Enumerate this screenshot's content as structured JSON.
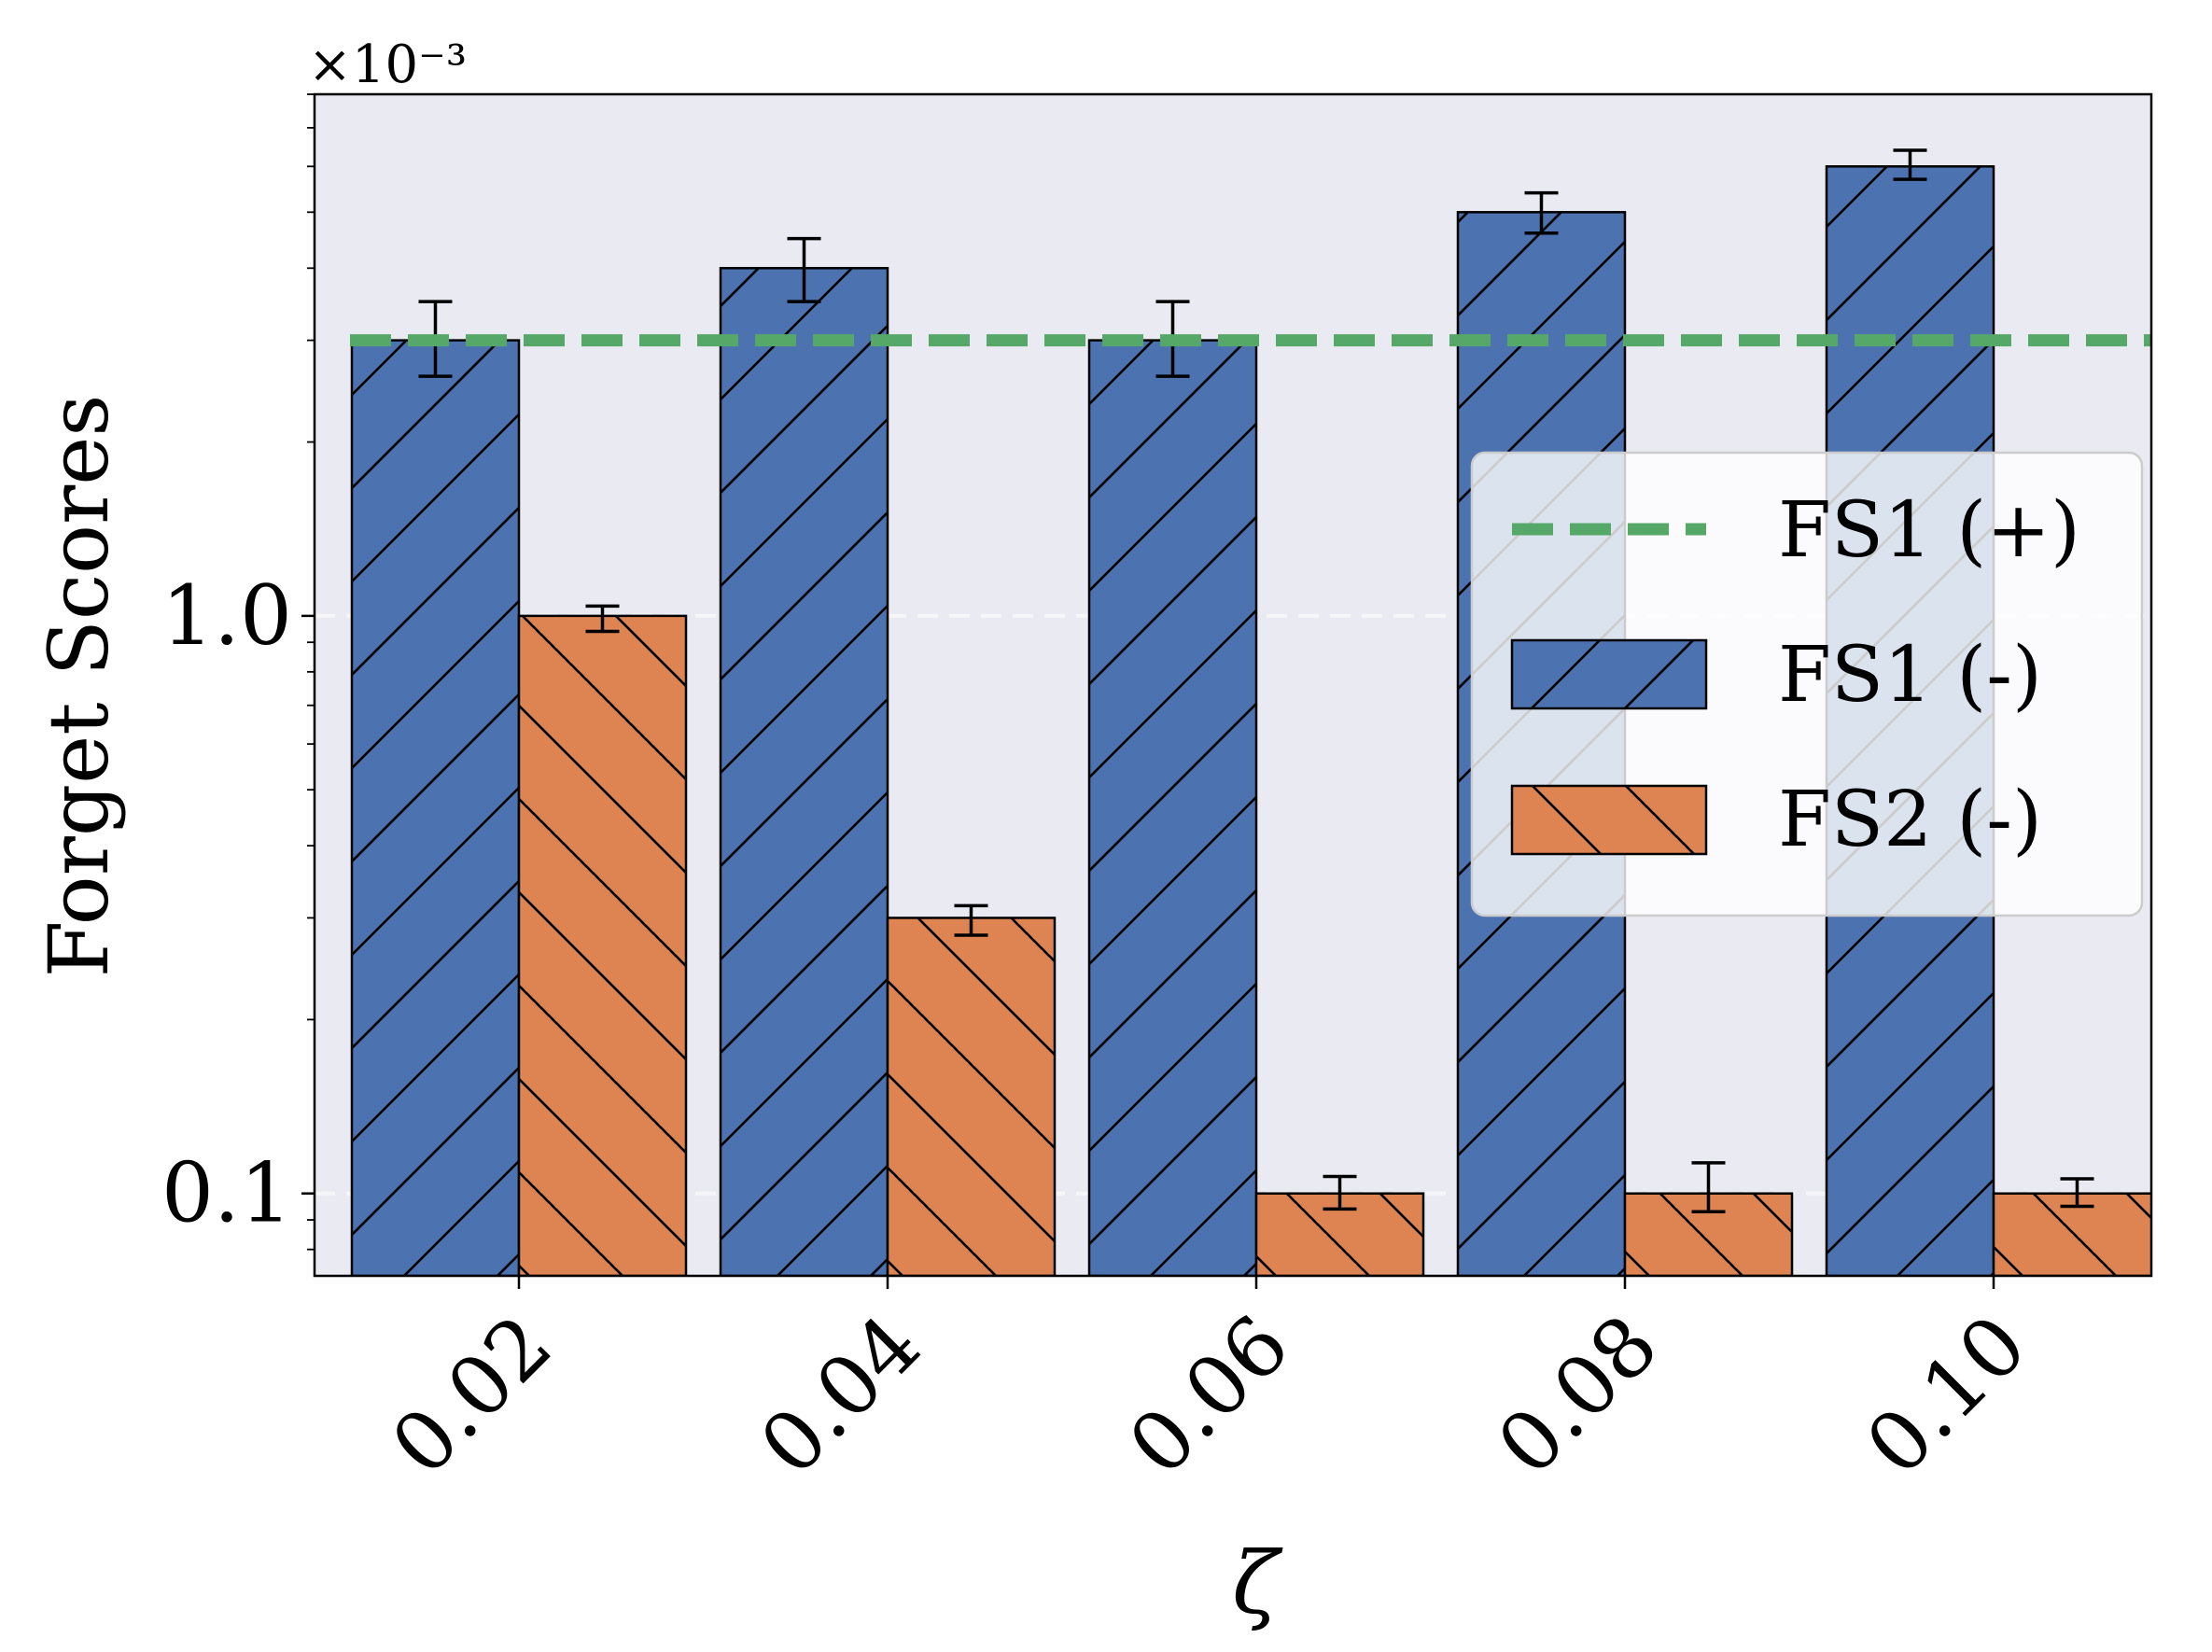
{
  "chart_data": {
    "type": "bar",
    "scale": "log",
    "multiplier_label": "×10⁻³",
    "title": "",
    "xlabel": "ζ",
    "ylabel": "Forget Scores",
    "categories": [
      "0.02",
      "0.04",
      "0.06",
      "0.08",
      "0.10"
    ],
    "ylim": [
      0.072,
      8.0
    ],
    "yticks": [
      {
        "value": 0.1,
        "label": "0.1"
      },
      {
        "value": 1.0,
        "label": "1.0"
      }
    ],
    "grid_lines": [
      0.1,
      1.0
    ],
    "series": [
      {
        "name": "FS1 (-)",
        "color": "#4c72b0",
        "hatch": "forward",
        "values": [
          3.0,
          4.0,
          3.0,
          5.0,
          6.0
        ],
        "err_low": [
          2.6,
          3.5,
          2.6,
          4.6,
          5.7
        ],
        "err_high": [
          3.5,
          4.5,
          3.5,
          5.4,
          6.4
        ]
      },
      {
        "name": "FS2 (-)",
        "color": "#dd8452",
        "hatch": "backward",
        "values": [
          1.0,
          0.3,
          0.1,
          0.1,
          0.1
        ],
        "err_low": [
          0.94,
          0.28,
          0.094,
          0.093,
          0.095
        ],
        "err_high": [
          1.04,
          0.315,
          0.107,
          0.113,
          0.106
        ]
      }
    ],
    "reference_line": {
      "name": "FS1 (+)",
      "value": 3.0,
      "color": "#55a868",
      "style": "dashed"
    },
    "legend": {
      "position": "center-right",
      "entries": [
        "FS1 (+)",
        "FS1 (-)",
        "FS2 (-)"
      ]
    },
    "background_color": "#eaeaf2"
  }
}
